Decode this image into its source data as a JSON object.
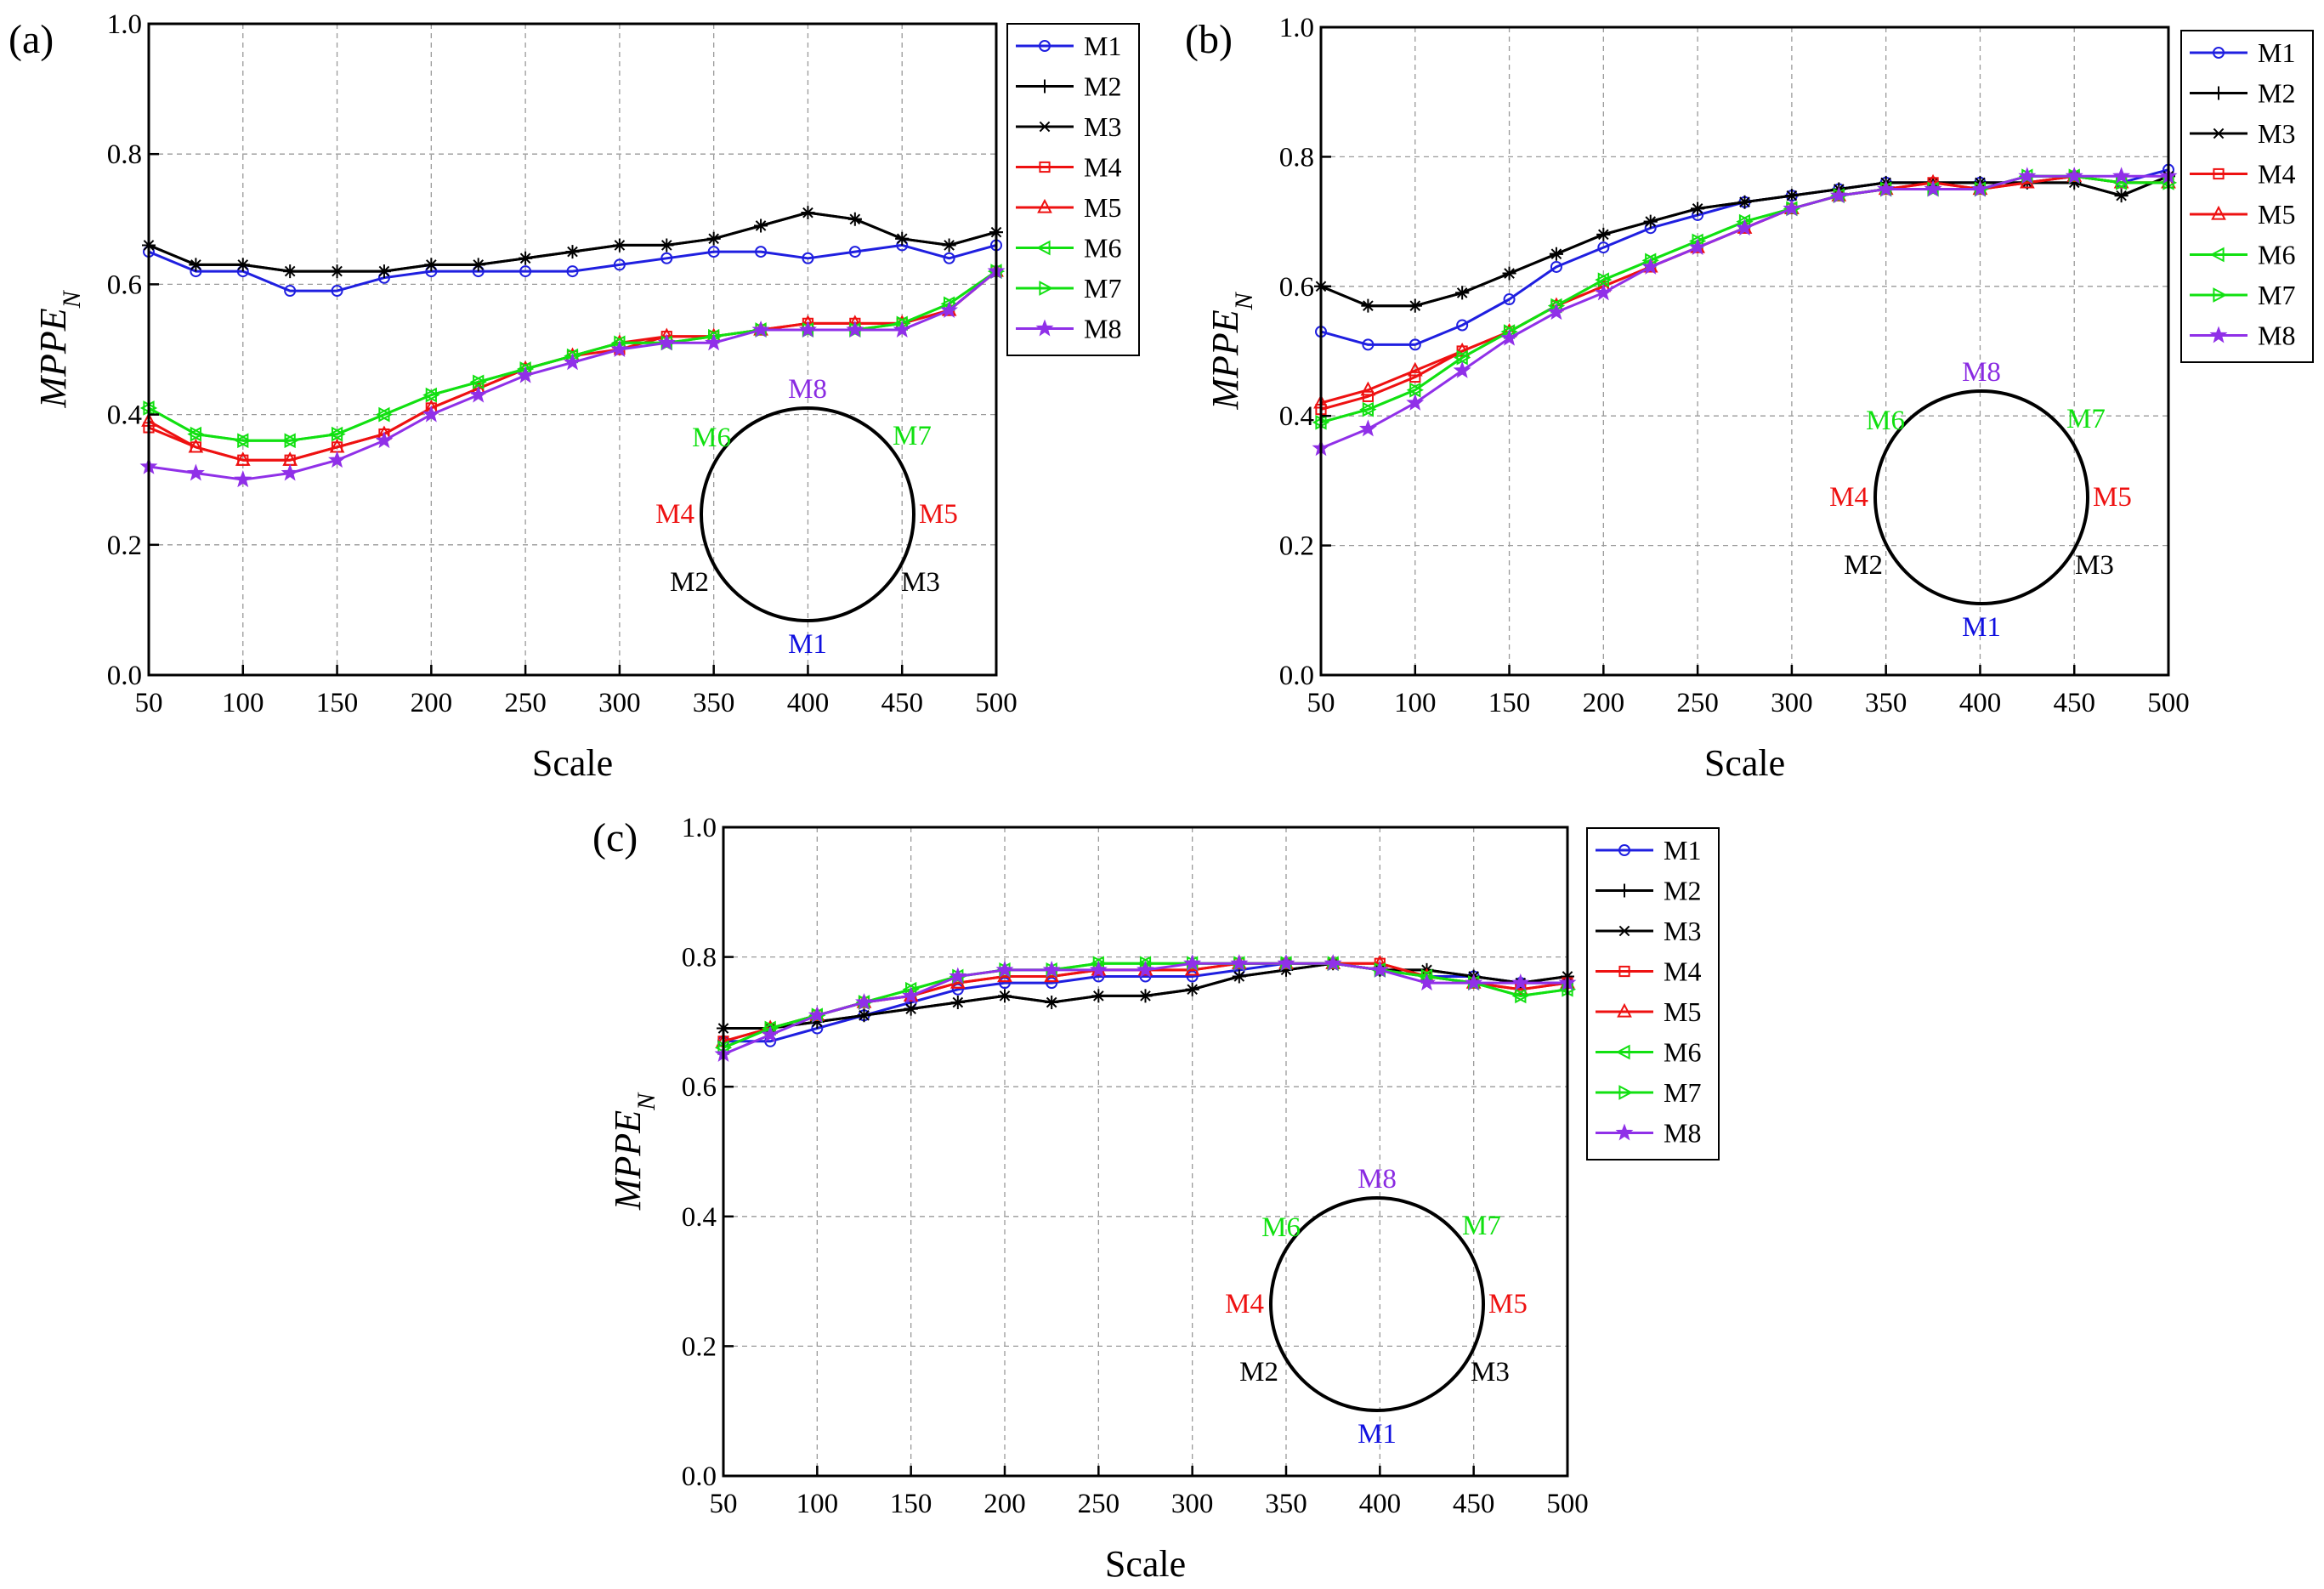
{
  "figure": {
    "marker_labels": {
      "M1": "M1",
      "M2": "M2",
      "M3": "M3",
      "M4": "M4",
      "M5": "M5",
      "M6": "M6",
      "M7": "M7",
      "M8": "M8"
    },
    "marker_label_colors": {
      "M1": "#1010e0",
      "M2": "#000000",
      "M3": "#000000",
      "M4": "#ee1111",
      "M5": "#ee1111",
      "M6": "#10e010",
      "M7": "#10e010",
      "M8": "#8a2be2"
    }
  },
  "chart_data": [
    {
      "id": "a",
      "panel_label": "(a)",
      "type": "line",
      "xlabel": "Scale",
      "ylabel": "MPPE",
      "ylabel_sub": "N",
      "xlim": [
        50,
        500
      ],
      "ylim": [
        0.0,
        1.0
      ],
      "xticks": [
        "50",
        "100",
        "150",
        "200",
        "250",
        "300",
        "350",
        "400",
        "450",
        "500"
      ],
      "yticks": [
        "0.0",
        "0.2",
        "0.4",
        "0.6",
        "0.8",
        "1.0"
      ],
      "grid": true,
      "legend": "outside-right",
      "inset": "sensor ring diagram with M1..M8 positions",
      "x": [
        50,
        75,
        100,
        125,
        150,
        175,
        200,
        225,
        250,
        275,
        300,
        325,
        350,
        375,
        400,
        425,
        450,
        475,
        500
      ],
      "series": [
        {
          "name": "M1",
          "color": "#1f1fe0",
          "marker": "circle",
          "values": [
            0.65,
            0.62,
            0.62,
            0.59,
            0.59,
            0.61,
            0.62,
            0.62,
            0.62,
            0.62,
            0.63,
            0.64,
            0.65,
            0.65,
            0.64,
            0.65,
            0.66,
            0.64,
            0.66
          ]
        },
        {
          "name": "M2",
          "color": "#000000",
          "marker": "plus",
          "values": [
            0.66,
            0.63,
            0.63,
            0.62,
            0.62,
            0.62,
            0.63,
            0.63,
            0.64,
            0.65,
            0.66,
            0.66,
            0.67,
            0.69,
            0.71,
            0.7,
            0.67,
            0.66,
            0.68
          ]
        },
        {
          "name": "M3",
          "color": "#000000",
          "marker": "star",
          "values": [
            0.66,
            0.63,
            0.63,
            0.62,
            0.62,
            0.62,
            0.63,
            0.63,
            0.64,
            0.65,
            0.66,
            0.66,
            0.67,
            0.69,
            0.71,
            0.7,
            0.67,
            0.66,
            0.68
          ]
        },
        {
          "name": "M4",
          "color": "#ee1111",
          "marker": "square",
          "values": [
            0.38,
            0.35,
            0.33,
            0.33,
            0.35,
            0.37,
            0.41,
            0.44,
            0.47,
            0.49,
            0.5,
            0.52,
            0.52,
            0.53,
            0.54,
            0.54,
            0.54,
            0.56,
            0.62
          ]
        },
        {
          "name": "M5",
          "color": "#ee1111",
          "marker": "triangle-up",
          "values": [
            0.39,
            0.35,
            0.33,
            0.33,
            0.35,
            0.37,
            0.41,
            0.44,
            0.47,
            0.49,
            0.51,
            0.52,
            0.52,
            0.53,
            0.54,
            0.54,
            0.54,
            0.56,
            0.62
          ]
        },
        {
          "name": "M6",
          "color": "#11e011",
          "marker": "triangle-left",
          "values": [
            0.41,
            0.37,
            0.36,
            0.36,
            0.37,
            0.4,
            0.43,
            0.45,
            0.47,
            0.49,
            0.51,
            0.51,
            0.52,
            0.53,
            0.53,
            0.53,
            0.54,
            0.57,
            0.62
          ]
        },
        {
          "name": "M7",
          "color": "#11e011",
          "marker": "triangle-right",
          "values": [
            0.41,
            0.37,
            0.36,
            0.36,
            0.37,
            0.4,
            0.43,
            0.45,
            0.47,
            0.49,
            0.51,
            0.51,
            0.52,
            0.53,
            0.53,
            0.53,
            0.54,
            0.57,
            0.62
          ]
        },
        {
          "name": "M8",
          "color": "#9030e8",
          "marker": "star5",
          "values": [
            0.32,
            0.31,
            0.3,
            0.31,
            0.33,
            0.36,
            0.4,
            0.43,
            0.46,
            0.48,
            0.5,
            0.51,
            0.51,
            0.53,
            0.53,
            0.53,
            0.53,
            0.56,
            0.62
          ]
        }
      ]
    },
    {
      "id": "b",
      "panel_label": "(b)",
      "type": "line",
      "xlabel": "Scale",
      "ylabel": "MPPE",
      "ylabel_sub": "N",
      "xlim": [
        50,
        500
      ],
      "ylim": [
        0.0,
        1.0
      ],
      "xticks": [
        "50",
        "100",
        "150",
        "200",
        "250",
        "300",
        "350",
        "400",
        "450",
        "500"
      ],
      "yticks": [
        "0.0",
        "0.2",
        "0.4",
        "0.6",
        "0.8",
        "1.0"
      ],
      "grid": true,
      "legend": "outside-right",
      "inset": "sensor ring diagram with M1..M8 positions",
      "x": [
        50,
        75,
        100,
        125,
        150,
        175,
        200,
        225,
        250,
        275,
        300,
        325,
        350,
        375,
        400,
        425,
        450,
        475,
        500
      ],
      "series": [
        {
          "name": "M1",
          "color": "#1f1fe0",
          "marker": "circle",
          "values": [
            0.53,
            0.51,
            0.51,
            0.54,
            0.58,
            0.63,
            0.66,
            0.69,
            0.71,
            0.73,
            0.74,
            0.75,
            0.76,
            0.76,
            0.76,
            0.76,
            0.77,
            0.76,
            0.78
          ]
        },
        {
          "name": "M2",
          "color": "#000000",
          "marker": "plus",
          "values": [
            0.6,
            0.57,
            0.57,
            0.59,
            0.62,
            0.65,
            0.68,
            0.7,
            0.72,
            0.73,
            0.74,
            0.75,
            0.76,
            0.76,
            0.76,
            0.76,
            0.76,
            0.74,
            0.77
          ]
        },
        {
          "name": "M3",
          "color": "#000000",
          "marker": "star",
          "values": [
            0.6,
            0.57,
            0.57,
            0.59,
            0.62,
            0.65,
            0.68,
            0.7,
            0.72,
            0.73,
            0.74,
            0.75,
            0.76,
            0.76,
            0.76,
            0.76,
            0.76,
            0.74,
            0.77
          ]
        },
        {
          "name": "M4",
          "color": "#ee1111",
          "marker": "square",
          "values": [
            0.41,
            0.43,
            0.46,
            0.5,
            0.53,
            0.57,
            0.6,
            0.63,
            0.66,
            0.69,
            0.72,
            0.74,
            0.75,
            0.76,
            0.75,
            0.76,
            0.77,
            0.76,
            0.76
          ]
        },
        {
          "name": "M5",
          "color": "#ee1111",
          "marker": "triangle-up",
          "values": [
            0.42,
            0.44,
            0.47,
            0.5,
            0.53,
            0.57,
            0.6,
            0.63,
            0.66,
            0.69,
            0.72,
            0.74,
            0.75,
            0.76,
            0.75,
            0.76,
            0.77,
            0.76,
            0.76
          ]
        },
        {
          "name": "M6",
          "color": "#11e011",
          "marker": "triangle-left",
          "values": [
            0.39,
            0.41,
            0.44,
            0.49,
            0.53,
            0.57,
            0.61,
            0.64,
            0.67,
            0.7,
            0.72,
            0.74,
            0.75,
            0.75,
            0.75,
            0.77,
            0.77,
            0.76,
            0.76
          ]
        },
        {
          "name": "M7",
          "color": "#11e011",
          "marker": "triangle-right",
          "values": [
            0.39,
            0.41,
            0.44,
            0.49,
            0.53,
            0.57,
            0.61,
            0.64,
            0.67,
            0.7,
            0.72,
            0.74,
            0.75,
            0.75,
            0.75,
            0.77,
            0.77,
            0.76,
            0.76
          ]
        },
        {
          "name": "M8",
          "color": "#9030e8",
          "marker": "star5",
          "values": [
            0.35,
            0.38,
            0.42,
            0.47,
            0.52,
            0.56,
            0.59,
            0.63,
            0.66,
            0.69,
            0.72,
            0.74,
            0.75,
            0.75,
            0.75,
            0.77,
            0.77,
            0.77,
            0.77
          ]
        }
      ]
    },
    {
      "id": "c",
      "panel_label": "(c)",
      "type": "line",
      "xlabel": "Scale",
      "ylabel": "MPPE",
      "ylabel_sub": "N",
      "xlim": [
        50,
        500
      ],
      "ylim": [
        0.0,
        1.0
      ],
      "xticks": [
        "50",
        "100",
        "150",
        "200",
        "250",
        "300",
        "350",
        "400",
        "450",
        "500"
      ],
      "yticks": [
        "0.0",
        "0.2",
        "0.4",
        "0.6",
        "0.8",
        "1.0"
      ],
      "grid": true,
      "legend": "outside-right",
      "inset": "sensor ring diagram with M1..M8 positions",
      "x": [
        50,
        75,
        100,
        125,
        150,
        175,
        200,
        225,
        250,
        275,
        300,
        325,
        350,
        375,
        400,
        425,
        450,
        475,
        500
      ],
      "series": [
        {
          "name": "M1",
          "color": "#1f1fe0",
          "marker": "circle",
          "values": [
            0.67,
            0.67,
            0.69,
            0.71,
            0.73,
            0.75,
            0.76,
            0.76,
            0.77,
            0.77,
            0.77,
            0.78,
            0.79,
            0.79,
            0.78,
            0.77,
            0.77,
            0.76,
            0.76
          ]
        },
        {
          "name": "M2",
          "color": "#000000",
          "marker": "plus",
          "values": [
            0.69,
            0.69,
            0.7,
            0.71,
            0.72,
            0.73,
            0.74,
            0.73,
            0.74,
            0.74,
            0.75,
            0.77,
            0.78,
            0.79,
            0.78,
            0.78,
            0.77,
            0.76,
            0.77
          ]
        },
        {
          "name": "M3",
          "color": "#000000",
          "marker": "star",
          "values": [
            0.69,
            0.69,
            0.7,
            0.71,
            0.72,
            0.73,
            0.74,
            0.73,
            0.74,
            0.74,
            0.75,
            0.77,
            0.78,
            0.79,
            0.78,
            0.78,
            0.77,
            0.76,
            0.77
          ]
        },
        {
          "name": "M4",
          "color": "#ee1111",
          "marker": "square",
          "values": [
            0.67,
            0.69,
            0.71,
            0.73,
            0.74,
            0.76,
            0.77,
            0.77,
            0.78,
            0.78,
            0.78,
            0.79,
            0.79,
            0.79,
            0.79,
            0.77,
            0.76,
            0.75,
            0.76
          ]
        },
        {
          "name": "M5",
          "color": "#ee1111",
          "marker": "triangle-up",
          "values": [
            0.67,
            0.69,
            0.71,
            0.73,
            0.74,
            0.76,
            0.77,
            0.77,
            0.78,
            0.78,
            0.78,
            0.79,
            0.79,
            0.79,
            0.79,
            0.77,
            0.76,
            0.75,
            0.76
          ]
        },
        {
          "name": "M6",
          "color": "#11e011",
          "marker": "triangle-left",
          "values": [
            0.66,
            0.69,
            0.71,
            0.73,
            0.75,
            0.77,
            0.78,
            0.78,
            0.79,
            0.79,
            0.79,
            0.79,
            0.79,
            0.79,
            0.78,
            0.77,
            0.76,
            0.74,
            0.75
          ]
        },
        {
          "name": "M7",
          "color": "#11e011",
          "marker": "triangle-right",
          "values": [
            0.66,
            0.69,
            0.71,
            0.73,
            0.75,
            0.77,
            0.78,
            0.78,
            0.79,
            0.79,
            0.79,
            0.79,
            0.79,
            0.79,
            0.78,
            0.77,
            0.76,
            0.74,
            0.75
          ]
        },
        {
          "name": "M8",
          "color": "#9030e8",
          "marker": "star5",
          "values": [
            0.65,
            0.68,
            0.71,
            0.73,
            0.74,
            0.77,
            0.78,
            0.78,
            0.78,
            0.78,
            0.79,
            0.79,
            0.79,
            0.79,
            0.78,
            0.76,
            0.76,
            0.76,
            0.76
          ]
        }
      ]
    }
  ]
}
